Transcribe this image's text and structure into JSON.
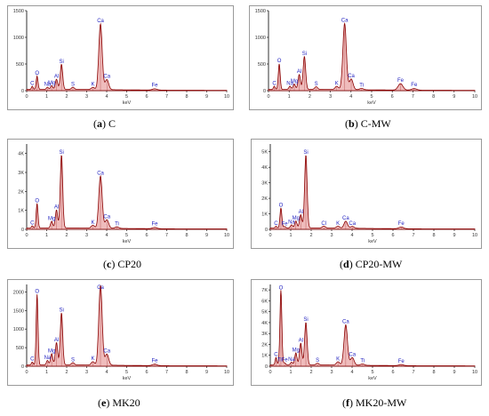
{
  "figure": {
    "panels": [
      {
        "id": "a",
        "letter": "a",
        "name": "C"
      },
      {
        "id": "b",
        "letter": "b",
        "name": "C-MW"
      },
      {
        "id": "c",
        "letter": "c",
        "name": "CP20"
      },
      {
        "id": "d",
        "letter": "d",
        "name": "CP20-MW"
      },
      {
        "id": "e",
        "letter": "e",
        "name": "MK20"
      },
      {
        "id": "f",
        "letter": "f",
        "name": "MK20-MW"
      }
    ]
  },
  "colors": {
    "spectrum_outline": "#8b0000",
    "spectrum_fill": "#e8a0a0",
    "peak_label": "#1f1fbf",
    "axis": "#000000",
    "panel_border": "#9a9a9a"
  },
  "chart_data": [
    {
      "id": "a",
      "type": "area",
      "title": "",
      "xlabel": "keV",
      "ylabel": "",
      "xlim": [
        0,
        10
      ],
      "ylim": [
        0,
        1500
      ],
      "x_ticks": [
        "0",
        "1",
        "2",
        "3",
        "4",
        "5",
        "6",
        "7",
        "8",
        "9",
        "10"
      ],
      "y_ticks": [
        "0",
        "500",
        "1000",
        "1500"
      ],
      "grid": false,
      "legend": "none",
      "peaks": [
        {
          "label": "C",
          "x": 0.28,
          "y": 60
        },
        {
          "label": "O",
          "x": 0.52,
          "y": 250
        },
        {
          "label": "Na",
          "x": 1.04,
          "y": 40
        },
        {
          "label": "Mg",
          "x": 1.25,
          "y": 70
        },
        {
          "label": "Al",
          "x": 1.49,
          "y": 190
        },
        {
          "label": "Si",
          "x": 1.74,
          "y": 470
        },
        {
          "label": "S",
          "x": 2.31,
          "y": 40
        },
        {
          "label": "K",
          "x": 3.31,
          "y": 40
        },
        {
          "label": "Ca",
          "x": 3.69,
          "y": 1230
        },
        {
          "label": "Ca",
          "x": 4.01,
          "y": 190
        },
        {
          "label": "Fe",
          "x": 6.4,
          "y": 25
        }
      ]
    },
    {
      "id": "b",
      "type": "area",
      "title": "",
      "xlabel": "keV",
      "ylabel": "",
      "xlim": [
        0,
        10
      ],
      "ylim": [
        0,
        1500
      ],
      "x_ticks": [
        "0",
        "1",
        "2",
        "3",
        "4",
        "5",
        "6",
        "7",
        "8",
        "9",
        "10"
      ],
      "y_ticks": [
        "0",
        "500",
        "1000",
        "1500"
      ],
      "grid": false,
      "legend": "none",
      "peaks": [
        {
          "label": "C",
          "x": 0.28,
          "y": 60
        },
        {
          "label": "O",
          "x": 0.52,
          "y": 480
        },
        {
          "label": "Na",
          "x": 1.04,
          "y": 60
        },
        {
          "label": "Mg",
          "x": 1.25,
          "y": 100
        },
        {
          "label": "Al",
          "x": 1.49,
          "y": 280
        },
        {
          "label": "Si",
          "x": 1.74,
          "y": 620
        },
        {
          "label": "S",
          "x": 2.31,
          "y": 50
        },
        {
          "label": "K",
          "x": 3.31,
          "y": 60
        },
        {
          "label": "Ca",
          "x": 3.69,
          "y": 1240
        },
        {
          "label": "Ca",
          "x": 4.01,
          "y": 200
        },
        {
          "label": "Ti",
          "x": 4.51,
          "y": 25
        },
        {
          "label": "Fe",
          "x": 6.4,
          "y": 120
        },
        {
          "label": "Fe",
          "x": 7.06,
          "y": 30
        }
      ]
    },
    {
      "id": "c",
      "type": "area",
      "title": "",
      "xlabel": "keV",
      "ylabel": "",
      "xlim": [
        0,
        10
      ],
      "ylim": [
        0,
        4500
      ],
      "x_ticks": [
        "0",
        "1",
        "2",
        "3",
        "4",
        "5",
        "6",
        "7",
        "8",
        "9",
        "10"
      ],
      "y_ticks": [
        "0",
        "1K",
        "2K",
        "3K",
        "4K"
      ],
      "grid": false,
      "legend": "none",
      "peaks": [
        {
          "label": "C",
          "x": 0.28,
          "y": 120
        },
        {
          "label": "O",
          "x": 0.52,
          "y": 1300
        },
        {
          "label": "Mg",
          "x": 1.25,
          "y": 350
        },
        {
          "label": "Al",
          "x": 1.49,
          "y": 950
        },
        {
          "label": "Si",
          "x": 1.74,
          "y": 3850
        },
        {
          "label": "K",
          "x": 3.31,
          "y": 150
        },
        {
          "label": "Ca",
          "x": 3.69,
          "y": 2750
        },
        {
          "label": "Ca",
          "x": 4.01,
          "y": 450
        },
        {
          "label": "Ti",
          "x": 4.51,
          "y": 80
        },
        {
          "label": "Fe",
          "x": 6.4,
          "y": 70
        }
      ]
    },
    {
      "id": "d",
      "type": "area",
      "title": "",
      "xlabel": "keV",
      "ylabel": "",
      "xlim": [
        0,
        10
      ],
      "ylim": [
        0,
        5500
      ],
      "x_ticks": [
        "0",
        "1",
        "2",
        "3",
        "4",
        "5",
        "6",
        "7",
        "8",
        "9",
        "10"
      ],
      "y_ticks": [
        "0",
        "1K",
        "2K",
        "3K",
        "4K",
        "5K"
      ],
      "grid": false,
      "legend": "none",
      "peaks": [
        {
          "label": "C",
          "x": 0.28,
          "y": 120
        },
        {
          "label": "Fe",
          "x": 0.7,
          "y": 100
        },
        {
          "label": "O",
          "x": 0.52,
          "y": 1300
        },
        {
          "label": "Na",
          "x": 1.04,
          "y": 200
        },
        {
          "label": "Mg",
          "x": 1.25,
          "y": 450
        },
        {
          "label": "Al",
          "x": 1.49,
          "y": 850
        },
        {
          "label": "Si",
          "x": 1.74,
          "y": 4700
        },
        {
          "label": "Cl",
          "x": 2.62,
          "y": 120
        },
        {
          "label": "K",
          "x": 3.31,
          "y": 120
        },
        {
          "label": "Ca",
          "x": 3.69,
          "y": 450
        },
        {
          "label": "Ca",
          "x": 4.01,
          "y": 120
        },
        {
          "label": "Fe",
          "x": 6.4,
          "y": 110
        }
      ]
    },
    {
      "id": "e",
      "type": "area",
      "title": "",
      "xlabel": "keV",
      "ylabel": "",
      "xlim": [
        0,
        10
      ],
      "ylim": [
        0,
        2200
      ],
      "x_ticks": [
        "0",
        "1",
        "2",
        "3",
        "4",
        "5",
        "6",
        "7",
        "8",
        "9",
        "10"
      ],
      "y_ticks": [
        "0",
        "500",
        "1000",
        "1500",
        "2000"
      ],
      "grid": false,
      "legend": "none",
      "peaks": [
        {
          "label": "C",
          "x": 0.28,
          "y": 80
        },
        {
          "label": "O",
          "x": 0.52,
          "y": 1900
        },
        {
          "label": "Na",
          "x": 1.04,
          "y": 120
        },
        {
          "label": "Mg",
          "x": 1.25,
          "y": 300
        },
        {
          "label": "Al",
          "x": 1.49,
          "y": 600
        },
        {
          "label": "Si",
          "x": 1.74,
          "y": 1400
        },
        {
          "label": "S",
          "x": 2.31,
          "y": 60
        },
        {
          "label": "K",
          "x": 3.31,
          "y": 90
        },
        {
          "label": "Ca",
          "x": 3.69,
          "y": 2150
        },
        {
          "label": "Ca",
          "x": 4.01,
          "y": 300
        },
        {
          "label": "Fe",
          "x": 6.4,
          "y": 40
        }
      ]
    },
    {
      "id": "f",
      "type": "area",
      "title": "",
      "xlabel": "keV",
      "ylabel": "",
      "xlim": [
        0,
        10
      ],
      "ylim": [
        0,
        7500
      ],
      "x_ticks": [
        "0",
        "1",
        "2",
        "3",
        "4",
        "5",
        "6",
        "7",
        "8",
        "9",
        "10"
      ],
      "y_ticks": [
        "0",
        "1K",
        "2K",
        "3K",
        "4K",
        "5K",
        "6K",
        "7K"
      ],
      "grid": false,
      "legend": "none",
      "peaks": [
        {
          "label": "C",
          "x": 0.28,
          "y": 700
        },
        {
          "label": "Fe",
          "x": 0.7,
          "y": 200
        },
        {
          "label": "O",
          "x": 0.52,
          "y": 6800
        },
        {
          "label": "Ti",
          "x": 0.45,
          "y": 200
        },
        {
          "label": "Na",
          "x": 1.04,
          "y": 250
        },
        {
          "label": "Mg",
          "x": 1.25,
          "y": 1100
        },
        {
          "label": "Al",
          "x": 1.49,
          "y": 2000
        },
        {
          "label": "Si",
          "x": 1.74,
          "y": 3900
        },
        {
          "label": "S",
          "x": 2.31,
          "y": 150
        },
        {
          "label": "K",
          "x": 3.31,
          "y": 300
        },
        {
          "label": "Ca",
          "x": 3.69,
          "y": 3700
        },
        {
          "label": "Ca",
          "x": 4.01,
          "y": 700
        },
        {
          "label": "Ti",
          "x": 4.51,
          "y": 120
        },
        {
          "label": "Fe",
          "x": 6.4,
          "y": 100
        }
      ]
    }
  ]
}
